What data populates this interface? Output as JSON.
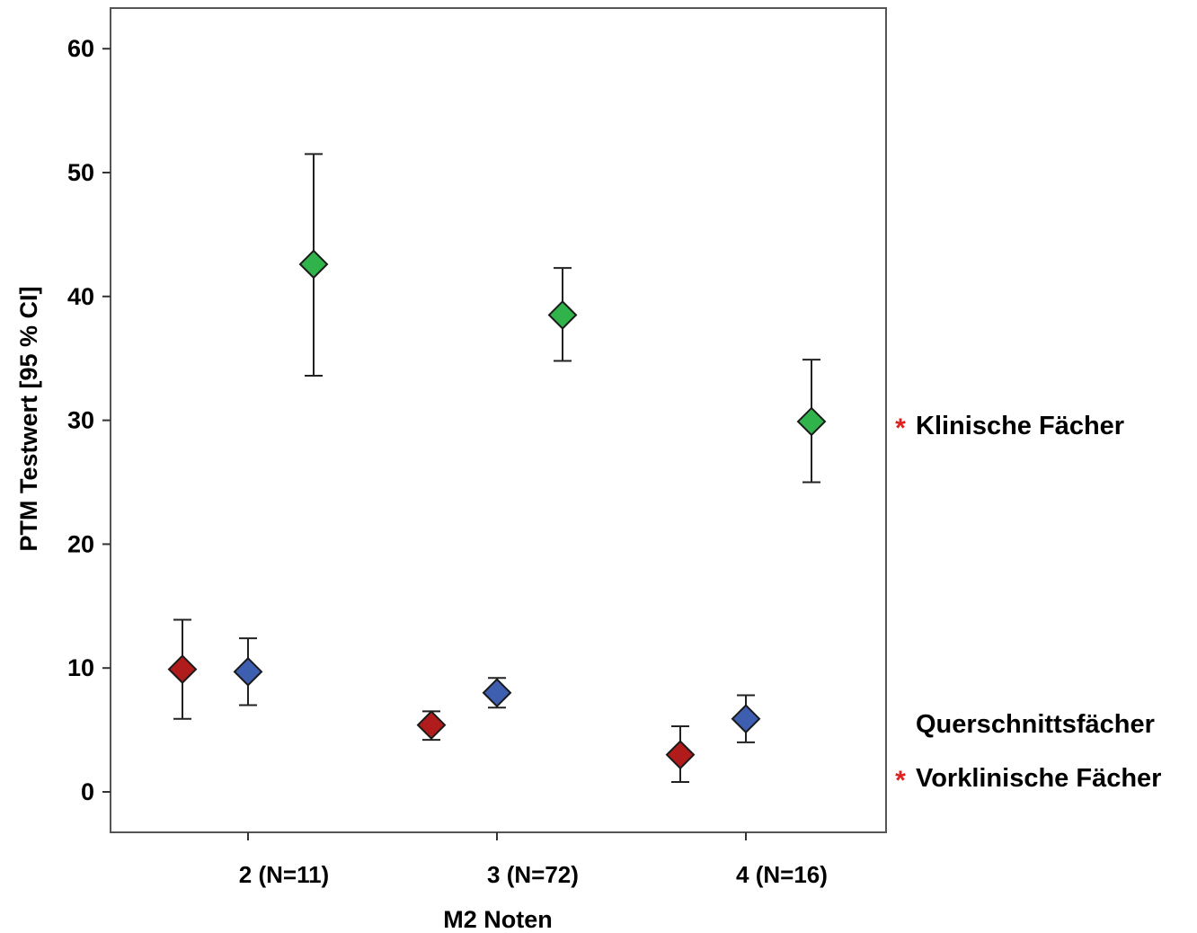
{
  "chart_data": {
    "type": "scatter",
    "subtype": "means-with-95ci-error-bars",
    "xlabel": "M2 Noten",
    "ylabel": "PTM Testwert [95 % CI]",
    "ylim": [
      -3.2,
      63.5
    ],
    "yticks": [
      0,
      10,
      20,
      30,
      40,
      50,
      60
    ],
    "categories": [
      "2  (N=11)",
      "3 (N=72)",
      "4 (N=16)"
    ],
    "series": [
      {
        "key": "vorklinisch",
        "name": "Vorklinische Fächer",
        "starred": true,
        "color": "#b01c1c",
        "offset": -1,
        "values": [
          9.9,
          5.4,
          3.0
        ],
        "ci_low": [
          5.9,
          4.2,
          0.8
        ],
        "ci_high": [
          13.9,
          6.5,
          5.3
        ]
      },
      {
        "key": "querschnitt",
        "name": "Querschnittsfächer",
        "starred": false,
        "color": "#3e5fb0",
        "offset": 0,
        "values": [
          9.7,
          8.0,
          5.9
        ],
        "ci_low": [
          7.0,
          6.8,
          4.0
        ],
        "ci_high": [
          12.4,
          9.2,
          7.8
        ]
      },
      {
        "key": "klinisch",
        "name": "Klinische Fächer",
        "starred": true,
        "color": "#2fb34a",
        "offset": 1,
        "values": [
          42.6,
          38.5,
          29.9
        ],
        "ci_low": [
          33.6,
          34.8,
          25.0
        ],
        "ci_high": [
          51.5,
          42.3,
          34.9
        ]
      }
    ],
    "legend": {
      "placement": "right",
      "star_symbol": "*",
      "items": [
        "Klinische Fächer",
        "Querschnittsfächer",
        "Vorklinische Fächer"
      ]
    },
    "grid": false
  }
}
